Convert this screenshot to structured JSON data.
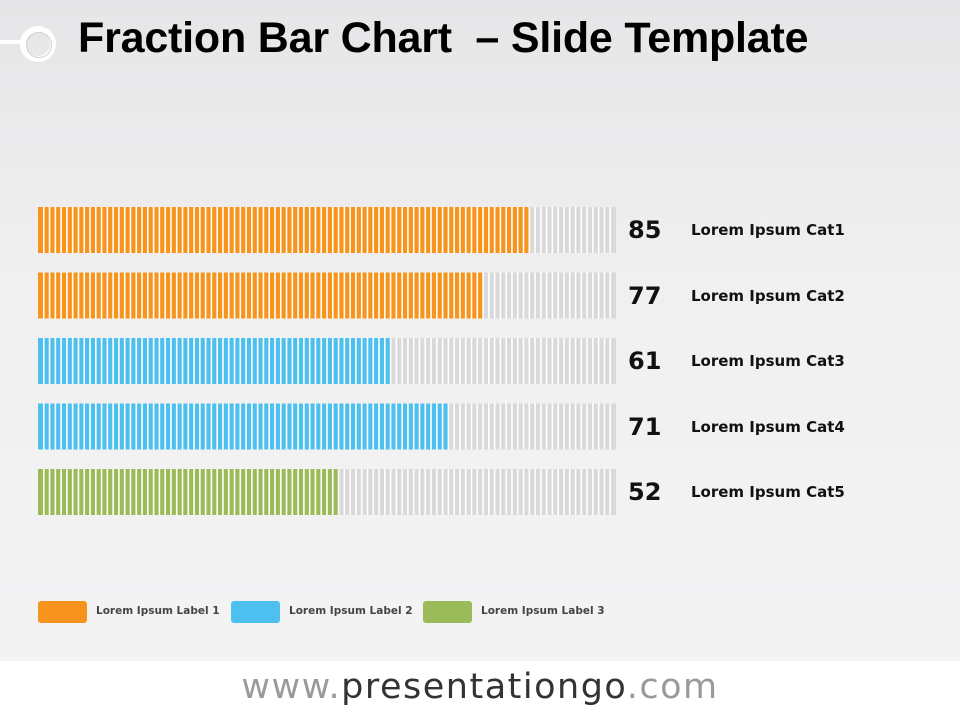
{
  "title": "Fraction Bar Chart  – Slide Template",
  "chart_data": {
    "type": "bar",
    "orientation": "horizontal",
    "style": "fraction-segments",
    "segments_total": 100,
    "categories": [
      "Lorem Ipsum Cat1",
      "Lorem Ipsum Cat2",
      "Lorem Ipsum Cat3",
      "Lorem Ipsum Cat4",
      "Lorem Ipsum Cat5"
    ],
    "values": [
      85,
      77,
      61,
      71,
      52
    ],
    "value_labels": [
      "85",
      "77",
      "61",
      "71",
      "52"
    ],
    "groups": [
      0,
      0,
      1,
      1,
      2
    ],
    "xlim": [
      0,
      100
    ],
    "legend": [
      {
        "label": "Lorem Ipsum Label 1",
        "color": "#f7941e"
      },
      {
        "label": "Lorem Ipsum Label 2",
        "color": "#4ec0ef"
      },
      {
        "label": "Lorem Ipsum Label 3",
        "color": "#9bbb59"
      }
    ],
    "background_color": "#d9d9d9",
    "legend_position": "bottom-left"
  },
  "footer": {
    "prefix": "www.",
    "brand": "presentationgo",
    "suffix": ".com"
  }
}
